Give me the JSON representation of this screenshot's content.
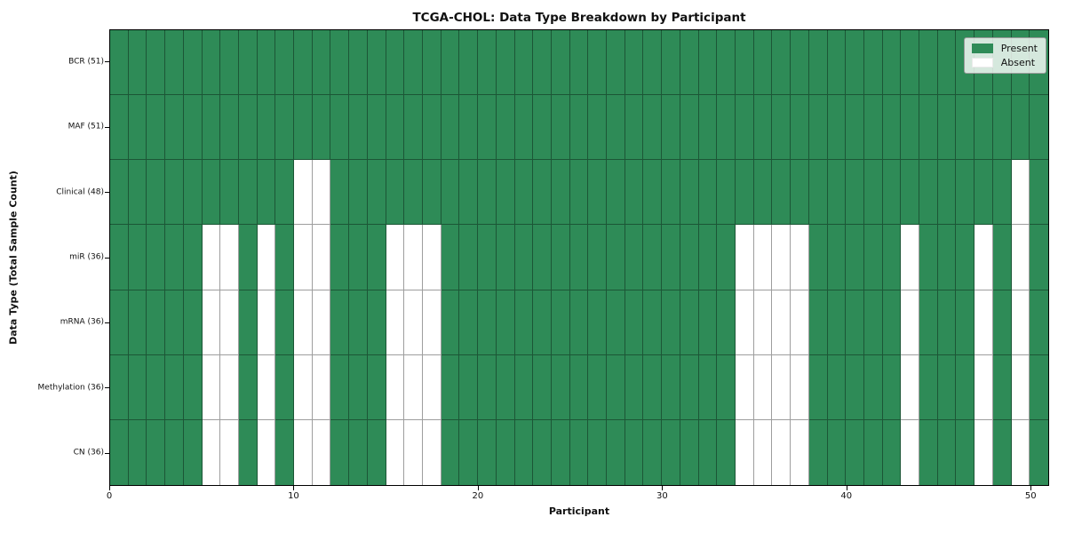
{
  "figure": {
    "title": "TCGA-CHOL: Data Type Breakdown by Participant",
    "xlabel": "Participant",
    "ylabel": "Data Type (Total Sample Count)"
  },
  "legend": {
    "items": [
      {
        "label": "Present",
        "color": "#2e8b57"
      },
      {
        "label": "Absent",
        "color": "#ffffff"
      }
    ]
  },
  "colors": {
    "present": "#2e8b57",
    "absent": "#ffffff",
    "grid_line": "rgba(0,0,0,0.38)",
    "frame": "#000000"
  },
  "chart_data": {
    "type": "heatmap",
    "title": "TCGA-CHOL: Data Type Breakdown by Participant",
    "xlabel": "Participant",
    "ylabel": "Data Type (Total Sample Count)",
    "n_participants": 51,
    "x_range": [
      0,
      51
    ],
    "x_tick_values": [
      0,
      10,
      20,
      30,
      40,
      50
    ],
    "grid": true,
    "legend_entries": [
      "Present",
      "Absent"
    ],
    "legend_position": "upper right",
    "cell_states": {
      "present": 1,
      "absent": 0
    },
    "rows": [
      {
        "label": "BCR (51)",
        "total_present": 51,
        "absent_participants": []
      },
      {
        "label": "MAF (51)",
        "total_present": 51,
        "absent_participants": []
      },
      {
        "label": "Clinical (48)",
        "total_present": 48,
        "absent_participants": [
          10,
          11,
          49
        ]
      },
      {
        "label": "miR (36)",
        "total_present": 36,
        "absent_participants": [
          5,
          6,
          8,
          10,
          11,
          15,
          16,
          17,
          34,
          35,
          36,
          37,
          43,
          47,
          49
        ]
      },
      {
        "label": "mRNA (36)",
        "total_present": 36,
        "absent_participants": [
          5,
          6,
          8,
          10,
          11,
          15,
          16,
          17,
          34,
          35,
          36,
          37,
          43,
          47,
          49
        ]
      },
      {
        "label": "Methylation (36)",
        "total_present": 36,
        "absent_participants": [
          5,
          6,
          8,
          10,
          11,
          15,
          16,
          17,
          34,
          35,
          36,
          37,
          43,
          47,
          49
        ]
      },
      {
        "label": "CN (36)",
        "total_present": 36,
        "absent_participants": [
          5,
          6,
          8,
          10,
          11,
          15,
          16,
          17,
          34,
          35,
          36,
          37,
          43,
          47,
          49
        ]
      }
    ]
  }
}
